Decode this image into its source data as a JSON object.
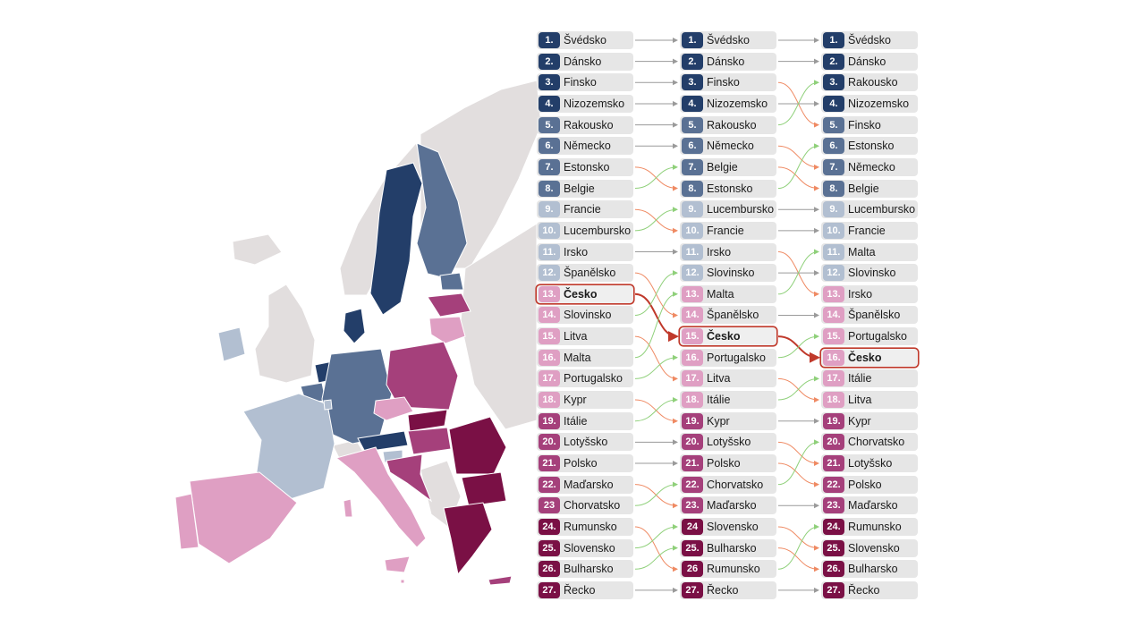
{
  "colors": {
    "rank_1_4": "#233e69",
    "rank_5_8": "#5a7194",
    "rank_9_12": "#b2bfd1",
    "rank_13_18": "#df9fc3",
    "rank_19_23": "#a5407b",
    "rank_24_27": "#7a1045",
    "improved": "#8fd07a",
    "declined": "#ef8a63",
    "unchanged": "#9a9a9a",
    "highlight": "#c0392b",
    "non_eu": "#e2dede"
  },
  "icons": {
    "flow_arrow": "arrow-icon"
  },
  "columns": [
    {
      "entries": [
        {
          "rank": "1.",
          "country": "Švédsko"
        },
        {
          "rank": "2.",
          "country": "Dánsko"
        },
        {
          "rank": "3.",
          "country": "Finsko"
        },
        {
          "rank": "4.",
          "country": "Nizozemsko"
        },
        {
          "rank": "5.",
          "country": "Rakousko"
        },
        {
          "rank": "6.",
          "country": "Německo"
        },
        {
          "rank": "7.",
          "country": "Estonsko"
        },
        {
          "rank": "8.",
          "country": "Belgie"
        },
        {
          "rank": "9.",
          "country": "Francie"
        },
        {
          "rank": "10.",
          "country": "Lucembursko"
        },
        {
          "rank": "11.",
          "country": "Irsko"
        },
        {
          "rank": "12.",
          "country": "Španělsko"
        },
        {
          "rank": "13.",
          "country": "Česko"
        },
        {
          "rank": "14.",
          "country": "Slovinsko"
        },
        {
          "rank": "15.",
          "country": "Litva"
        },
        {
          "rank": "16.",
          "country": "Malta"
        },
        {
          "rank": "17.",
          "country": "Portugalsko"
        },
        {
          "rank": "18.",
          "country": "Kypr"
        },
        {
          "rank": "19.",
          "country": "Itálie"
        },
        {
          "rank": "20.",
          "country": "Lotyšsko"
        },
        {
          "rank": "21.",
          "country": "Polsko"
        },
        {
          "rank": "22.",
          "country": "Maďarsko"
        },
        {
          "rank": "23",
          "country": "Chorvatsko"
        },
        {
          "rank": "24.",
          "country": "Rumunsko"
        },
        {
          "rank": "25.",
          "country": "Slovensko"
        },
        {
          "rank": "26.",
          "country": "Bulharsko"
        },
        {
          "rank": "27.",
          "country": "Řecko"
        }
      ]
    },
    {
      "entries": [
        {
          "rank": "1.",
          "country": "Švédsko"
        },
        {
          "rank": "2.",
          "country": "Dánsko"
        },
        {
          "rank": "3.",
          "country": "Finsko"
        },
        {
          "rank": "4.",
          "country": "Nizozemsko"
        },
        {
          "rank": "5.",
          "country": "Rakousko"
        },
        {
          "rank": "6.",
          "country": "Německo"
        },
        {
          "rank": "7.",
          "country": "Belgie"
        },
        {
          "rank": "8.",
          "country": "Estonsko"
        },
        {
          "rank": "9.",
          "country": "Lucembursko"
        },
        {
          "rank": "10.",
          "country": "Francie"
        },
        {
          "rank": "11.",
          "country": "Irsko"
        },
        {
          "rank": "12.",
          "country": "Slovinsko"
        },
        {
          "rank": "13.",
          "country": "Malta"
        },
        {
          "rank": "14.",
          "country": "Španělsko"
        },
        {
          "rank": "15.",
          "country": "Česko"
        },
        {
          "rank": "16.",
          "country": "Portugalsko"
        },
        {
          "rank": "17.",
          "country": "Litva"
        },
        {
          "rank": "18.",
          "country": "Itálie"
        },
        {
          "rank": "19.",
          "country": "Kypr"
        },
        {
          "rank": "20.",
          "country": "Lotyšsko"
        },
        {
          "rank": "21.",
          "country": "Polsko"
        },
        {
          "rank": "22.",
          "country": "Chorvatsko"
        },
        {
          "rank": "23.",
          "country": "Maďarsko"
        },
        {
          "rank": "24",
          "country": "Slovensko"
        },
        {
          "rank": "25.",
          "country": "Bulharsko"
        },
        {
          "rank": "26",
          "country": "Rumunsko"
        },
        {
          "rank": "27.",
          "country": "Řecko"
        }
      ]
    },
    {
      "entries": [
        {
          "rank": "1.",
          "country": "Švédsko"
        },
        {
          "rank": "2.",
          "country": "Dánsko"
        },
        {
          "rank": "3.",
          "country": "Rakousko"
        },
        {
          "rank": "4.",
          "country": "Nizozemsko"
        },
        {
          "rank": "5.",
          "country": "Finsko"
        },
        {
          "rank": "6.",
          "country": "Estonsko"
        },
        {
          "rank": "7.",
          "country": "Německo"
        },
        {
          "rank": "8.",
          "country": "Belgie"
        },
        {
          "rank": "9.",
          "country": "Lucembursko"
        },
        {
          "rank": "10.",
          "country": "Francie"
        },
        {
          "rank": "11.",
          "country": "Malta"
        },
        {
          "rank": "12.",
          "country": "Slovinsko"
        },
        {
          "rank": "13.",
          "country": "Irsko"
        },
        {
          "rank": "14.",
          "country": "Španělsko"
        },
        {
          "rank": "15.",
          "country": "Portugalsko"
        },
        {
          "rank": "16.",
          "country": "Česko"
        },
        {
          "rank": "17.",
          "country": "Itálie"
        },
        {
          "rank": "18.",
          "country": "Litva"
        },
        {
          "rank": "19.",
          "country": "Kypr"
        },
        {
          "rank": "20.",
          "country": "Chorvatsko"
        },
        {
          "rank": "21.",
          "country": "Lotyšsko"
        },
        {
          "rank": "22.",
          "country": "Polsko"
        },
        {
          "rank": "23.",
          "country": "Maďarsko"
        },
        {
          "rank": "24.",
          "country": "Rumunsko"
        },
        {
          "rank": "25.",
          "country": "Slovensko"
        },
        {
          "rank": "26.",
          "country": "Bulharsko"
        },
        {
          "rank": "27.",
          "country": "Řecko"
        }
      ]
    }
  ],
  "highlight_country": "Česko"
}
